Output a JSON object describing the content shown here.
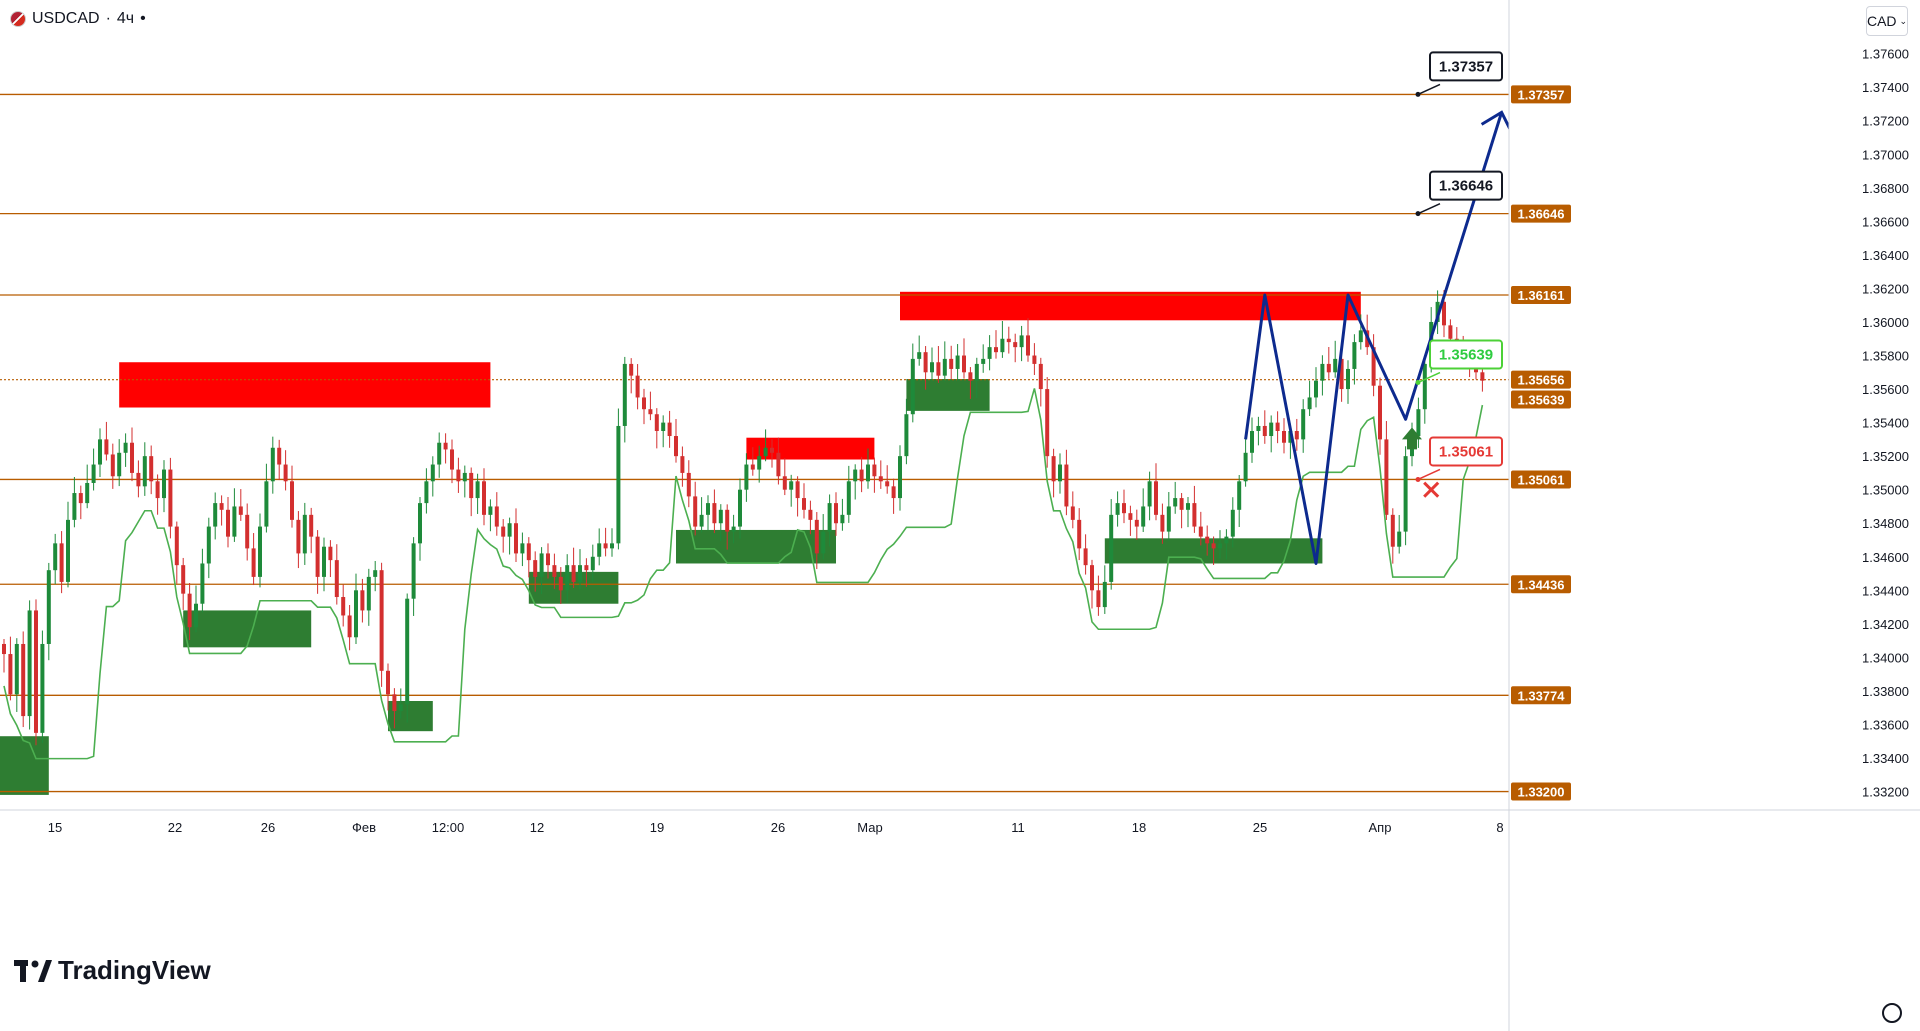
{
  "header": {
    "symbol": "USDCAD",
    "separator": "·",
    "interval": "4ч",
    "menu": "•"
  },
  "currency_selector": {
    "label": "CAD"
  },
  "branding": {
    "logo_text": "TradingView"
  },
  "colors": {
    "level": "#b85c00",
    "bull": "#1e8a3a",
    "bear": "#d32f2f",
    "projection": "#0d2a8e",
    "resist_zone": "#ff0000",
    "support_zone": "#2e7d32"
  },
  "chart_data": {
    "type": "candlestick",
    "symbol": "USDCAD",
    "timeframe": "4ч",
    "ylim": [
      1.3309,
      1.3792
    ],
    "y_ticks": [
      "1.37600",
      "1.37400",
      "1.37200",
      "1.37000",
      "1.36800",
      "1.36600",
      "1.36400",
      "1.36200",
      "1.36000",
      "1.35800",
      "1.35600",
      "1.35400",
      "1.35200",
      "1.35000",
      "1.34800",
      "1.34600",
      "1.34400",
      "1.34200",
      "1.34000",
      "1.33800",
      "1.33600",
      "1.33400",
      "1.33200"
    ],
    "x_ticks": [
      "15",
      "22",
      "26",
      "Фев",
      "12:00",
      "12",
      "19",
      "26",
      "Мар",
      "11",
      "18",
      "25",
      "Апр",
      "8"
    ],
    "levels": [
      1.37357,
      1.36646,
      1.36161,
      1.35061,
      1.34436,
      1.33774,
      1.332
    ],
    "level_labels": [
      "1.37357",
      "1.36646",
      "1.36161",
      "1.35061",
      "1.34436",
      "1.33774",
      "1.33200"
    ],
    "current_price": 1.35656,
    "current_price_label": "1.35656",
    "support_price_label": "1.35639",
    "callouts": [
      {
        "value": 1.37357,
        "label": "1.37357",
        "kind": "target"
      },
      {
        "value": 1.36646,
        "label": "1.36646",
        "kind": "target"
      },
      {
        "value": 1.35639,
        "label": "1.35639",
        "kind": "entry"
      },
      {
        "value": 1.35061,
        "label": "1.35061",
        "kind": "stop"
      }
    ],
    "resistance_zones": [
      {
        "t0": 18,
        "t1": 76,
        "y0": 1.3549,
        "y1": 1.3576
      },
      {
        "t0": 116,
        "t1": 136,
        "y0": 1.3518,
        "y1": 1.3531
      },
      {
        "t0": 140,
        "t1": 212,
        "y0": 1.3601,
        "y1": 1.3618
      }
    ],
    "support_zones": [
      {
        "t0": -2,
        "t1": 7,
        "y0": 1.3318,
        "y1": 1.3353
      },
      {
        "t0": 28,
        "t1": 48,
        "y0": 1.3406,
        "y1": 1.3428
      },
      {
        "t0": 60,
        "t1": 67,
        "y0": 1.3356,
        "y1": 1.3374
      },
      {
        "t0": 82,
        "t1": 96,
        "y0": 1.3432,
        "y1": 1.3451
      },
      {
        "t0": 105,
        "t1": 130,
        "y0": 1.3456,
        "y1": 1.3476
      },
      {
        "t0": 141,
        "t1": 154,
        "y0": 1.3547,
        "y1": 1.3566
      },
      {
        "t0": 172,
        "t1": 206,
        "y0": 1.3456,
        "y1": 1.3471
      }
    ],
    "projection_path": [
      [
        194,
        1.353
      ],
      [
        197,
        1.36161
      ],
      [
        205,
        1.3456
      ],
      [
        210,
        1.36161
      ],
      [
        219,
        1.3542
      ],
      [
        234,
        1.3725
      ]
    ],
    "closes": [
      1.3402,
      1.3378,
      1.3408,
      1.3365,
      1.3428,
      1.3355,
      1.3408,
      1.3452,
      1.3468,
      1.3445,
      1.3482,
      1.3498,
      1.3492,
      1.3504,
      1.3515,
      1.353,
      1.3521,
      1.3508,
      1.3522,
      1.3528,
      1.351,
      1.3502,
      1.352,
      1.3505,
      1.3495,
      1.3512,
      1.3478,
      1.3455,
      1.3438,
      1.3418,
      1.3432,
      1.3456,
      1.3478,
      1.3492,
      1.3488,
      1.3472,
      1.349,
      1.3485,
      1.3465,
      1.3448,
      1.3478,
      1.3505,
      1.3525,
      1.3515,
      1.3505,
      1.3482,
      1.3462,
      1.3485,
      1.3472,
      1.3448,
      1.3466,
      1.3458,
      1.3436,
      1.3425,
      1.3412,
      1.344,
      1.3428,
      1.3448,
      1.3452,
      1.3392,
      1.3378,
      1.3368,
      1.3372,
      1.3435,
      1.3468,
      1.3492,
      1.3505,
      1.3515,
      1.3528,
      1.3524,
      1.3512,
      1.3505,
      1.351,
      1.3495,
      1.3505,
      1.3485,
      1.349,
      1.3478,
      1.3472,
      1.348,
      1.3462,
      1.3468,
      1.3458,
      1.3448,
      1.3462,
      1.3455,
      1.3448,
      1.344,
      1.3455,
      1.3445,
      1.3455,
      1.3452,
      1.346,
      1.3468,
      1.3465,
      1.3468,
      1.3538,
      1.3575,
      1.3568,
      1.3555,
      1.3548,
      1.3545,
      1.3535,
      1.354,
      1.3532,
      1.352,
      1.351,
      1.3496,
      1.3478,
      1.3485,
      1.3492,
      1.348,
      1.3488,
      1.3475,
      1.3478,
      1.35,
      1.3515,
      1.3512,
      1.352,
      1.3525,
      1.3522,
      1.3508,
      1.35,
      1.3505,
      1.3495,
      1.3488,
      1.3482,
      1.3462,
      1.3475,
      1.3492,
      1.348,
      1.3485,
      1.3505,
      1.3512,
      1.3505,
      1.3515,
      1.3508,
      1.3505,
      1.3502,
      1.3495,
      1.352,
      1.3545,
      1.3578,
      1.3582,
      1.357,
      1.3576,
      1.3568,
      1.3578,
      1.3572,
      1.358,
      1.357,
      1.3565,
      1.3575,
      1.3578,
      1.3585,
      1.3582,
      1.359,
      1.3588,
      1.3585,
      1.3592,
      1.358,
      1.3575,
      1.356,
      1.352,
      1.3505,
      1.3515,
      1.349,
      1.3482,
      1.3465,
      1.3455,
      1.344,
      1.343,
      1.3445,
      1.3485,
      1.3492,
      1.3486,
      1.3482,
      1.3478,
      1.349,
      1.3505,
      1.3485,
      1.3475,
      1.349,
      1.3495,
      1.3488,
      1.3492,
      1.3478,
      1.3472,
      1.3468,
      1.3465,
      1.3468,
      1.3472,
      1.3488,
      1.3505,
      1.3522,
      1.3535,
      1.3538,
      1.3532,
      1.354,
      1.3535,
      1.3528,
      1.3535,
      1.353,
      1.3548,
      1.3555,
      1.3565,
      1.3575,
      1.357,
      1.3578,
      1.356,
      1.3572,
      1.3588,
      1.3595,
      1.3585,
      1.3562,
      1.353,
      1.3485,
      1.3466,
      1.3475,
      1.352,
      1.3532,
      1.3548,
      1.3575,
      1.36,
      1.3612,
      1.3598,
      1.359,
      1.3582,
      1.3578,
      1.3575,
      1.357,
      1.3565
    ]
  }
}
